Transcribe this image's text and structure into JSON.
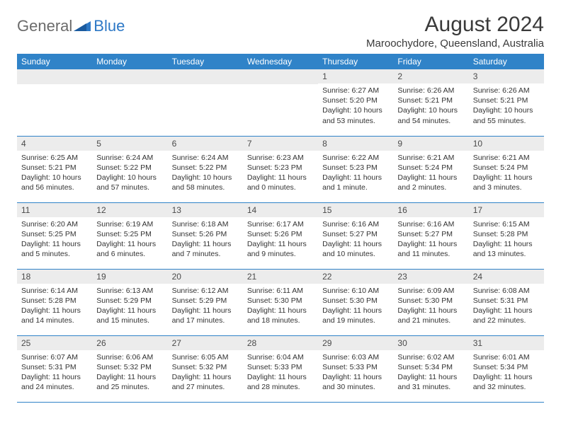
{
  "logo": {
    "text1": "General",
    "text2": "Blue"
  },
  "colors": {
    "header_bg": "#3083c8",
    "header_text": "#ffffff",
    "daynum_bg": "#ececec",
    "border": "#3083c8",
    "title_color": "#3a3a3a",
    "body_text": "#333333",
    "logo_gray": "#6b6b6b",
    "logo_blue": "#2d78c6"
  },
  "title": "August 2024",
  "location": "Maroochydore, Queensland, Australia",
  "day_headers": [
    "Sunday",
    "Monday",
    "Tuesday",
    "Wednesday",
    "Thursday",
    "Friday",
    "Saturday"
  ],
  "weeks": [
    [
      null,
      null,
      null,
      null,
      {
        "n": "1",
        "sr": "Sunrise: 6:27 AM",
        "ss": "Sunset: 5:20 PM",
        "dl": "Daylight: 10 hours and 53 minutes."
      },
      {
        "n": "2",
        "sr": "Sunrise: 6:26 AM",
        "ss": "Sunset: 5:21 PM",
        "dl": "Daylight: 10 hours and 54 minutes."
      },
      {
        "n": "3",
        "sr": "Sunrise: 6:26 AM",
        "ss": "Sunset: 5:21 PM",
        "dl": "Daylight: 10 hours and 55 minutes."
      }
    ],
    [
      {
        "n": "4",
        "sr": "Sunrise: 6:25 AM",
        "ss": "Sunset: 5:21 PM",
        "dl": "Daylight: 10 hours and 56 minutes."
      },
      {
        "n": "5",
        "sr": "Sunrise: 6:24 AM",
        "ss": "Sunset: 5:22 PM",
        "dl": "Daylight: 10 hours and 57 minutes."
      },
      {
        "n": "6",
        "sr": "Sunrise: 6:24 AM",
        "ss": "Sunset: 5:22 PM",
        "dl": "Daylight: 10 hours and 58 minutes."
      },
      {
        "n": "7",
        "sr": "Sunrise: 6:23 AM",
        "ss": "Sunset: 5:23 PM",
        "dl": "Daylight: 11 hours and 0 minutes."
      },
      {
        "n": "8",
        "sr": "Sunrise: 6:22 AM",
        "ss": "Sunset: 5:23 PM",
        "dl": "Daylight: 11 hours and 1 minute."
      },
      {
        "n": "9",
        "sr": "Sunrise: 6:21 AM",
        "ss": "Sunset: 5:24 PM",
        "dl": "Daylight: 11 hours and 2 minutes."
      },
      {
        "n": "10",
        "sr": "Sunrise: 6:21 AM",
        "ss": "Sunset: 5:24 PM",
        "dl": "Daylight: 11 hours and 3 minutes."
      }
    ],
    [
      {
        "n": "11",
        "sr": "Sunrise: 6:20 AM",
        "ss": "Sunset: 5:25 PM",
        "dl": "Daylight: 11 hours and 5 minutes."
      },
      {
        "n": "12",
        "sr": "Sunrise: 6:19 AM",
        "ss": "Sunset: 5:25 PM",
        "dl": "Daylight: 11 hours and 6 minutes."
      },
      {
        "n": "13",
        "sr": "Sunrise: 6:18 AM",
        "ss": "Sunset: 5:26 PM",
        "dl": "Daylight: 11 hours and 7 minutes."
      },
      {
        "n": "14",
        "sr": "Sunrise: 6:17 AM",
        "ss": "Sunset: 5:26 PM",
        "dl": "Daylight: 11 hours and 9 minutes."
      },
      {
        "n": "15",
        "sr": "Sunrise: 6:16 AM",
        "ss": "Sunset: 5:27 PM",
        "dl": "Daylight: 11 hours and 10 minutes."
      },
      {
        "n": "16",
        "sr": "Sunrise: 6:16 AM",
        "ss": "Sunset: 5:27 PM",
        "dl": "Daylight: 11 hours and 11 minutes."
      },
      {
        "n": "17",
        "sr": "Sunrise: 6:15 AM",
        "ss": "Sunset: 5:28 PM",
        "dl": "Daylight: 11 hours and 13 minutes."
      }
    ],
    [
      {
        "n": "18",
        "sr": "Sunrise: 6:14 AM",
        "ss": "Sunset: 5:28 PM",
        "dl": "Daylight: 11 hours and 14 minutes."
      },
      {
        "n": "19",
        "sr": "Sunrise: 6:13 AM",
        "ss": "Sunset: 5:29 PM",
        "dl": "Daylight: 11 hours and 15 minutes."
      },
      {
        "n": "20",
        "sr": "Sunrise: 6:12 AM",
        "ss": "Sunset: 5:29 PM",
        "dl": "Daylight: 11 hours and 17 minutes."
      },
      {
        "n": "21",
        "sr": "Sunrise: 6:11 AM",
        "ss": "Sunset: 5:30 PM",
        "dl": "Daylight: 11 hours and 18 minutes."
      },
      {
        "n": "22",
        "sr": "Sunrise: 6:10 AM",
        "ss": "Sunset: 5:30 PM",
        "dl": "Daylight: 11 hours and 19 minutes."
      },
      {
        "n": "23",
        "sr": "Sunrise: 6:09 AM",
        "ss": "Sunset: 5:30 PM",
        "dl": "Daylight: 11 hours and 21 minutes."
      },
      {
        "n": "24",
        "sr": "Sunrise: 6:08 AM",
        "ss": "Sunset: 5:31 PM",
        "dl": "Daylight: 11 hours and 22 minutes."
      }
    ],
    [
      {
        "n": "25",
        "sr": "Sunrise: 6:07 AM",
        "ss": "Sunset: 5:31 PM",
        "dl": "Daylight: 11 hours and 24 minutes."
      },
      {
        "n": "26",
        "sr": "Sunrise: 6:06 AM",
        "ss": "Sunset: 5:32 PM",
        "dl": "Daylight: 11 hours and 25 minutes."
      },
      {
        "n": "27",
        "sr": "Sunrise: 6:05 AM",
        "ss": "Sunset: 5:32 PM",
        "dl": "Daylight: 11 hours and 27 minutes."
      },
      {
        "n": "28",
        "sr": "Sunrise: 6:04 AM",
        "ss": "Sunset: 5:33 PM",
        "dl": "Daylight: 11 hours and 28 minutes."
      },
      {
        "n": "29",
        "sr": "Sunrise: 6:03 AM",
        "ss": "Sunset: 5:33 PM",
        "dl": "Daylight: 11 hours and 30 minutes."
      },
      {
        "n": "30",
        "sr": "Sunrise: 6:02 AM",
        "ss": "Sunset: 5:34 PM",
        "dl": "Daylight: 11 hours and 31 minutes."
      },
      {
        "n": "31",
        "sr": "Sunrise: 6:01 AM",
        "ss": "Sunset: 5:34 PM",
        "dl": "Daylight: 11 hours and 32 minutes."
      }
    ]
  ]
}
